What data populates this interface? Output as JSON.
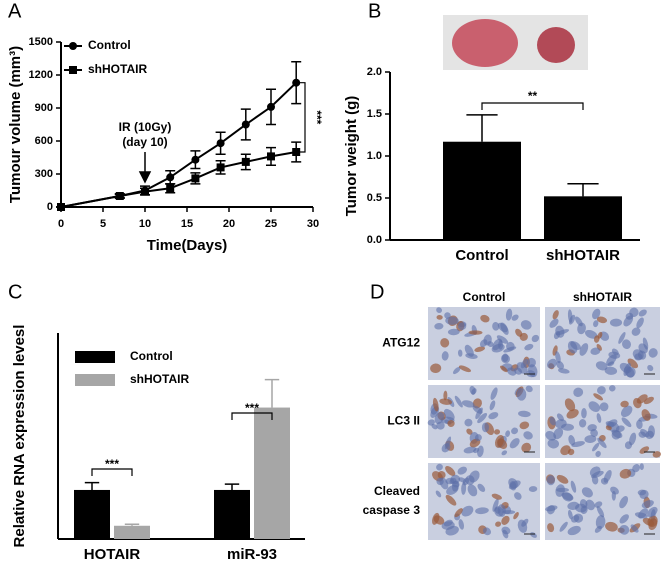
{
  "chart_data": [
    {
      "type": "line",
      "panel": "A",
      "xlabel": "Time(Days)",
      "ylabel": "Tumour volume (mm³)",
      "x": [
        0,
        7,
        10,
        13,
        16,
        19,
        22,
        25,
        28
      ],
      "series": [
        {
          "name": "Control",
          "color": "#000000",
          "marker": "circle",
          "values": [
            0,
            100,
            150,
            270,
            430,
            580,
            750,
            910,
            1130
          ],
          "errors": [
            0,
            20,
            40,
            60,
            80,
            100,
            140,
            160,
            190
          ]
        },
        {
          "name": "shHOTAIR",
          "color": "#000000",
          "marker": "square",
          "values": [
            0,
            100,
            140,
            170,
            260,
            360,
            410,
            460,
            500
          ],
          "errors": [
            0,
            15,
            30,
            40,
            50,
            60,
            70,
            80,
            90
          ]
        }
      ],
      "xlim": [
        0,
        30
      ],
      "xticks": [
        0,
        5,
        10,
        15,
        20,
        25,
        30
      ],
      "ylim": [
        0,
        1500
      ],
      "yticks": [
        0,
        300,
        600,
        900,
        1200,
        1500
      ],
      "treatment_label": [
        "IR (10Gy)",
        "(day 10)"
      ],
      "significance": "***"
    },
    {
      "type": "bar",
      "panel": "B",
      "ylabel": "Tumor weight (g)",
      "categories": [
        "Control",
        "shHOTAIR"
      ],
      "values": [
        1.17,
        0.52
      ],
      "errors": [
        0.32,
        0.15
      ],
      "color": "#000000",
      "ylim": [
        0,
        2
      ],
      "yticks": [
        {
          "value": 0,
          "label": "0.0"
        },
        0.5,
        {
          "value": 1,
          "label": "1.0"
        },
        1.5,
        {
          "value": 2,
          "label": "2.0"
        }
      ],
      "significance": "**"
    },
    {
      "type": "bar",
      "panel": "C",
      "ylabel": "Relative RNA expression levesl",
      "categories": [
        "HOTAIR",
        "miR-93"
      ],
      "series": [
        {
          "name": "Control",
          "color": "#000000",
          "values": [
            1.0,
            1.0
          ],
          "errors": [
            0.15,
            0.12
          ]
        },
        {
          "name": "shHOTAIR",
          "color": "#a6a6a6",
          "values": [
            0.27,
            2.68
          ],
          "errors": [
            0.03,
            0.57
          ]
        }
      ],
      "ylim": [
        0,
        4.2
      ],
      "significance": [
        "***",
        "***"
      ]
    }
  ],
  "panel_d": {
    "panel": "D",
    "columns": [
      "Control",
      "shHOTAIR"
    ],
    "row_labels": [
      [
        "ATG12"
      ],
      [
        "LC3 II"
      ],
      [
        "Cleaved",
        "caspase 3"
      ]
    ]
  }
}
